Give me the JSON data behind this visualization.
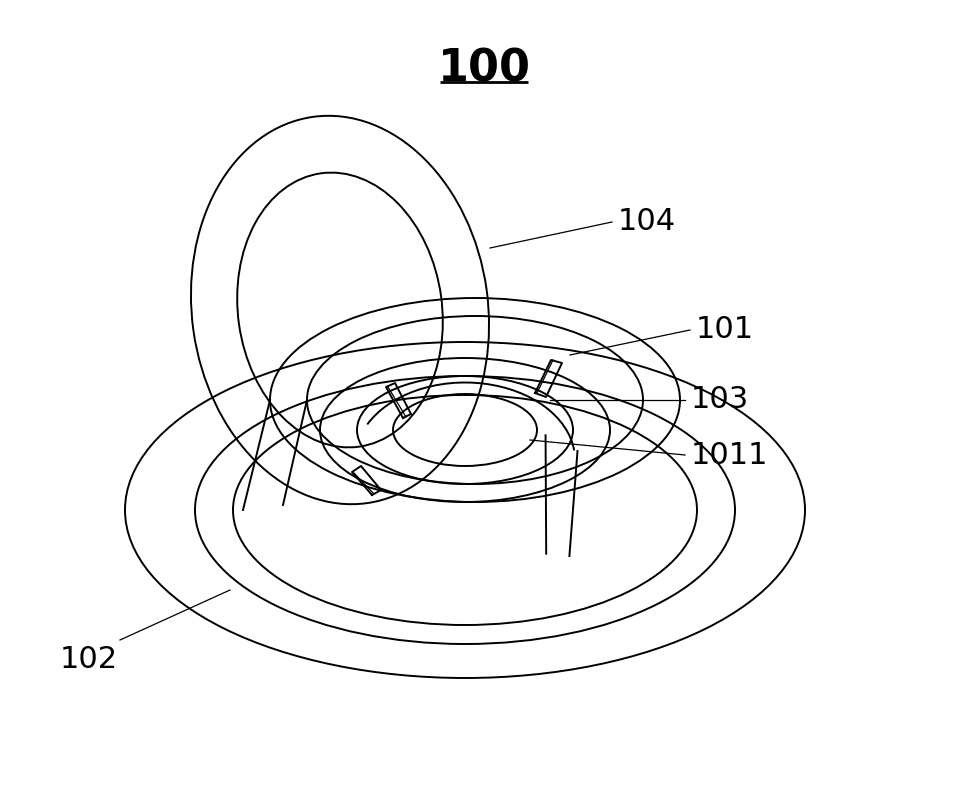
{
  "title": "100",
  "title_fontsize": 32,
  "title_fontweight": "bold",
  "bg_color": "#ffffff",
  "line_color": "#000000",
  "lw_main": 1.4,
  "lw_thin": 0.9,
  "label_fontsize": 22,
  "fig_width": 9.69,
  "fig_height": 7.93,
  "dpi": 100
}
